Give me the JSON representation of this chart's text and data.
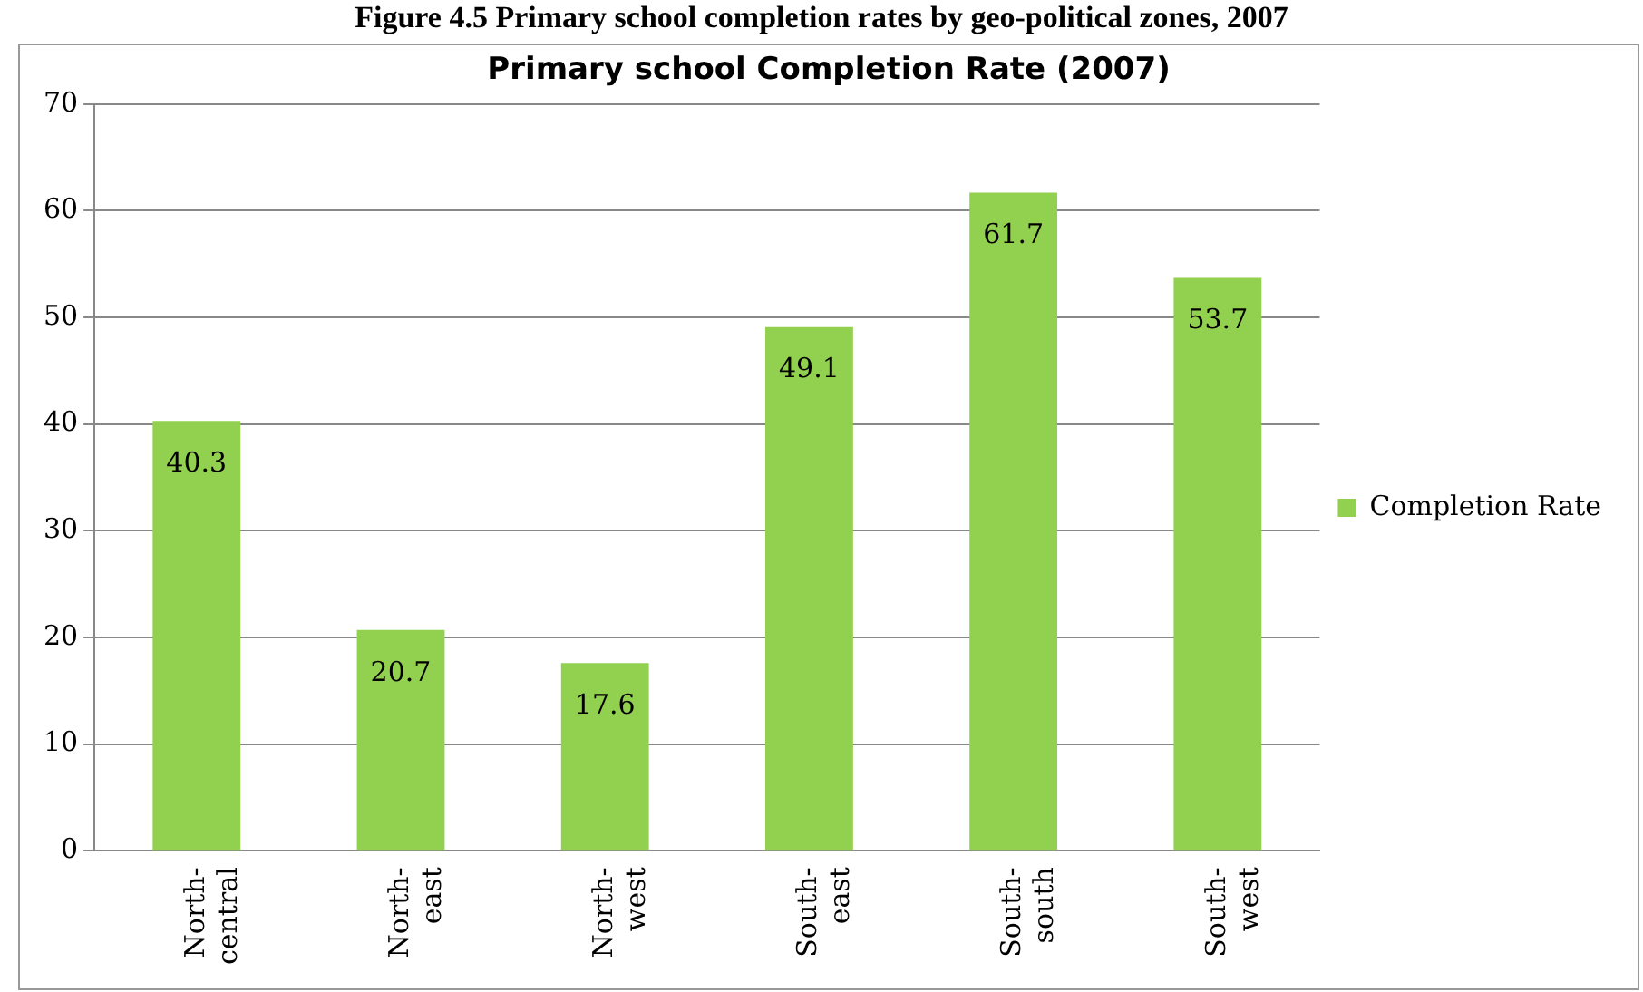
{
  "chart_data": {
    "type": "bar",
    "title": "Primary school Completion Rate (2007)",
    "annotations": [
      "Figure 4.5 Primary school completion rates by geo-political zones, 2007"
    ],
    "categories": [
      "North-central",
      "North-east",
      "North-west",
      "South-east",
      "South-south",
      "South-west"
    ],
    "series": [
      {
        "name": "Completion Rate",
        "color": "#92d050",
        "values": [
          40.3,
          20.7,
          17.6,
          49.1,
          61.7,
          53.7
        ]
      }
    ],
    "ylim": [
      0,
      70
    ],
    "yticks": [
      0,
      10,
      20,
      30,
      40,
      50,
      60,
      70
    ],
    "grid": "y",
    "legend": "right",
    "data_labels": true
  }
}
